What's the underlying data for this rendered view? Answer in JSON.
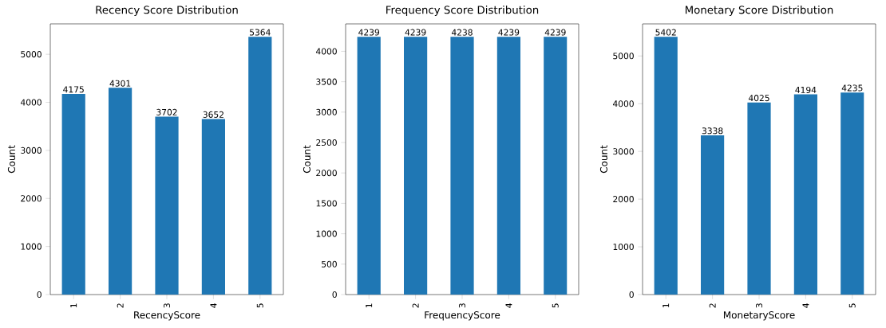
{
  "chart_data": [
    {
      "type": "bar",
      "title": "Recency Score Distribution",
      "xlabel": "RecencyScore",
      "ylabel": "Count",
      "categories": [
        "1",
        "2",
        "3",
        "4",
        "5"
      ],
      "values": [
        4175,
        4301,
        3702,
        3652,
        5364
      ],
      "color": "#1f77b4",
      "ylim": [
        0,
        5632
      ],
      "yticks": [
        0,
        1000,
        2000,
        3000,
        4000,
        5000
      ],
      "data_labels": true
    },
    {
      "type": "bar",
      "title": "Frequency Score Distribution",
      "xlabel": "FrequencyScore",
      "ylabel": "Count",
      "categories": [
        "1",
        "2",
        "3",
        "4",
        "5"
      ],
      "values": [
        4239,
        4239,
        4238,
        4239,
        4239
      ],
      "color": "#1f77b4",
      "ylim": [
        0,
        4451
      ],
      "yticks": [
        0,
        500,
        1000,
        1500,
        2000,
        2500,
        3000,
        3500,
        4000
      ],
      "data_labels": true
    },
    {
      "type": "bar",
      "title": "Monetary Score Distribution",
      "xlabel": "MonetaryScore",
      "ylabel": "Count",
      "categories": [
        "1",
        "2",
        "3",
        "4",
        "5"
      ],
      "values": [
        5402,
        3338,
        4025,
        4194,
        4235
      ],
      "color": "#1f77b4",
      "ylim": [
        0,
        5672
      ],
      "yticks": [
        0,
        1000,
        2000,
        3000,
        4000,
        5000
      ],
      "data_labels": true
    }
  ]
}
